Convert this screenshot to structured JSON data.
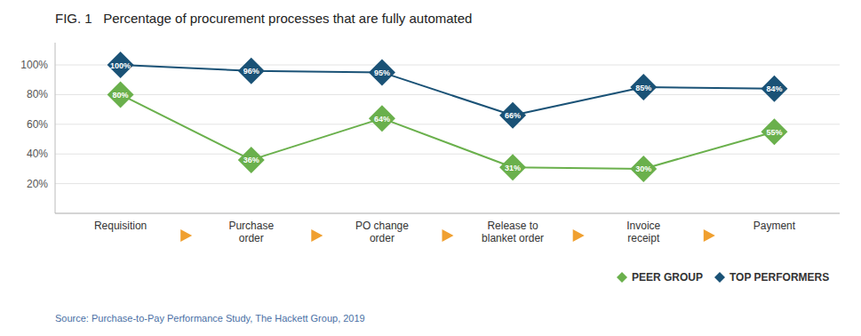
{
  "chart_data": {
    "type": "line",
    "title": "FIG. 1   Percentage of procurement processes that are fully automated",
    "categories": [
      "Requisition",
      "Purchase\norder",
      "PO change\norder",
      "Release to\nblanket order",
      "Invoice\nreceipt",
      "Payment"
    ],
    "series": [
      {
        "name": "PEER GROUP",
        "color": "#6ab04c",
        "values": [
          80,
          36,
          64,
          31,
          30,
          55
        ],
        "value_labels": [
          "80%",
          "36%",
          "64%",
          "31%",
          "30%",
          "55%"
        ]
      },
      {
        "name": "TOP PERFORMERS",
        "color": "#1a5276",
        "values": [
          100,
          96,
          95,
          66,
          85,
          84
        ],
        "value_labels": [
          "100%",
          "96%",
          "95%",
          "66%",
          "85%",
          "84%"
        ]
      }
    ],
    "ylim": [
      0,
      115
    ],
    "yticks": [
      {
        "value": 20,
        "label": "20%"
      },
      {
        "value": 40,
        "label": "40%"
      },
      {
        "value": 60,
        "label": "60%"
      },
      {
        "value": 80,
        "label": "80%"
      },
      {
        "value": 100,
        "label": "100%"
      }
    ],
    "grid": true,
    "legend": "lower right",
    "data_labels": true,
    "marker": "diamond",
    "annotations": [
      "Source: Purchase-to-Pay Performance Study, The Hackett Group, 2019"
    ]
  }
}
